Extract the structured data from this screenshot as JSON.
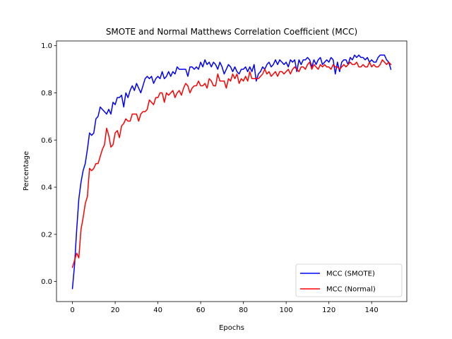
{
  "chart_data": {
    "type": "line",
    "title": "SMOTE and Normal Matthews Correlation Coefficient (MCC)",
    "xlabel": "Epochs",
    "ylabel": "Percentage",
    "xlim": [
      -7.45,
      156.45
    ],
    "ylim": [
      -0.085,
      1.02
    ],
    "xticks": [
      0,
      20,
      40,
      60,
      80,
      100,
      120,
      140
    ],
    "yticks": [
      0.0,
      0.2,
      0.4,
      0.6,
      0.8,
      1.0
    ],
    "ytick_labels": [
      "0.0",
      "0.2",
      "0.4",
      "0.6",
      "0.8",
      "1.0"
    ],
    "grid": false,
    "legend_position": "lower-right",
    "series": [
      {
        "name": "MCC (SMOTE)",
        "color": "#0000ff",
        "values": [
          -0.03,
          0.07,
          0.22,
          0.35,
          0.42,
          0.47,
          0.5,
          0.56,
          0.63,
          0.62,
          0.63,
          0.69,
          0.7,
          0.74,
          0.73,
          0.72,
          0.71,
          0.73,
          0.71,
          0.76,
          0.75,
          0.78,
          0.78,
          0.79,
          0.74,
          0.8,
          0.78,
          0.81,
          0.83,
          0.81,
          0.84,
          0.82,
          0.8,
          0.83,
          0.86,
          0.87,
          0.86,
          0.87,
          0.84,
          0.86,
          0.87,
          0.86,
          0.89,
          0.86,
          0.87,
          0.89,
          0.87,
          0.89,
          0.88,
          0.91,
          0.9,
          0.9,
          0.9,
          0.9,
          0.87,
          0.91,
          0.91,
          0.9,
          0.91,
          0.9,
          0.93,
          0.91,
          0.94,
          0.92,
          0.93,
          0.91,
          0.93,
          0.92,
          0.9,
          0.93,
          0.91,
          0.88,
          0.9,
          0.92,
          0.91,
          0.89,
          0.91,
          0.89,
          0.88,
          0.9,
          0.9,
          0.91,
          0.89,
          0.91,
          0.89,
          0.92,
          0.85,
          0.88,
          0.89,
          0.91,
          0.9,
          0.92,
          0.93,
          0.91,
          0.92,
          0.94,
          0.92,
          0.94,
          0.93,
          0.92,
          0.93,
          0.91,
          0.94,
          0.93,
          0.94,
          0.89,
          0.94,
          0.92,
          0.94,
          0.94,
          0.95,
          0.94,
          0.91,
          0.94,
          0.92,
          0.94,
          0.95,
          0.92,
          0.93,
          0.94,
          0.93,
          0.95,
          0.94,
          0.88,
          0.93,
          0.89,
          0.93,
          0.94,
          0.94,
          0.92,
          0.95,
          0.94,
          0.96,
          0.95,
          0.96,
          0.95,
          0.95,
          0.94,
          0.95,
          0.93,
          0.94,
          0.93,
          0.93,
          0.95,
          0.96,
          0.96,
          0.96,
          0.94,
          0.93,
          0.9
        ]
      },
      {
        "name": "MCC (Normal)",
        "color": "#ff0000",
        "values": [
          0.06,
          0.09,
          0.12,
          0.1,
          0.22,
          0.27,
          0.33,
          0.36,
          0.48,
          0.47,
          0.48,
          0.5,
          0.5,
          0.53,
          0.56,
          0.58,
          0.65,
          0.62,
          0.57,
          0.58,
          0.63,
          0.64,
          0.61,
          0.66,
          0.67,
          0.69,
          0.68,
          0.68,
          0.71,
          0.71,
          0.71,
          0.68,
          0.71,
          0.72,
          0.72,
          0.73,
          0.77,
          0.76,
          0.75,
          0.78,
          0.78,
          0.8,
          0.8,
          0.76,
          0.8,
          0.79,
          0.8,
          0.81,
          0.78,
          0.8,
          0.81,
          0.79,
          0.82,
          0.84,
          0.83,
          0.8,
          0.82,
          0.83,
          0.83,
          0.85,
          0.83,
          0.83,
          0.84,
          0.82,
          0.86,
          0.85,
          0.83,
          0.83,
          0.88,
          0.85,
          0.85,
          0.85,
          0.82,
          0.86,
          0.85,
          0.88,
          0.86,
          0.88,
          0.84,
          0.86,
          0.85,
          0.87,
          0.85,
          0.89,
          0.86,
          0.86,
          0.86,
          0.86,
          0.87,
          0.88,
          0.9,
          0.88,
          0.89,
          0.87,
          0.88,
          0.89,
          0.87,
          0.89,
          0.89,
          0.88,
          0.89,
          0.9,
          0.88,
          0.9,
          0.91,
          0.9,
          0.89,
          0.91,
          0.91,
          0.9,
          0.92,
          0.93,
          0.9,
          0.92,
          0.91,
          0.9,
          0.92,
          0.91,
          0.92,
          0.91,
          0.91,
          0.9,
          0.92,
          0.91,
          0.91,
          0.9,
          0.91,
          0.92,
          0.91,
          0.92,
          0.93,
          0.92,
          0.92,
          0.93,
          0.91,
          0.91,
          0.92,
          0.91,
          0.91,
          0.93,
          0.91,
          0.92,
          0.91,
          0.91,
          0.92,
          0.94,
          0.93,
          0.92,
          0.93,
          0.92
        ]
      }
    ]
  }
}
